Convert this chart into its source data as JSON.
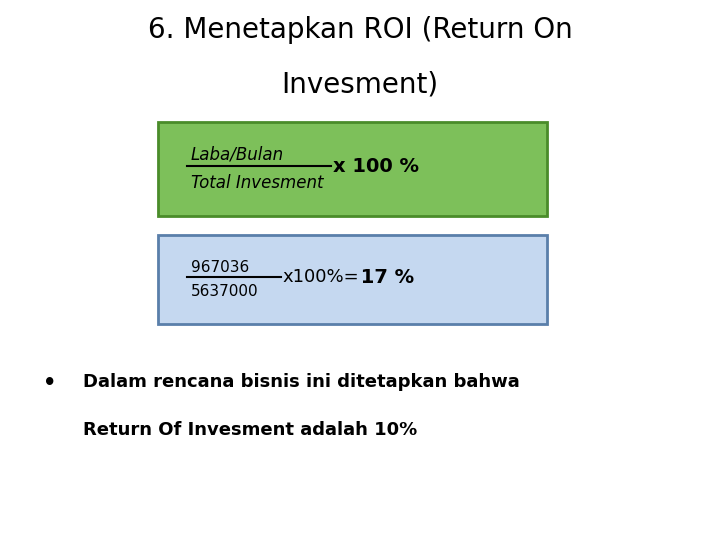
{
  "title_line1": "6. Menetapkan ROI (Return On",
  "title_line2": "Invesment)",
  "title_fontsize": 20,
  "title_color": "#000000",
  "green_box_color": "#7DC05A",
  "green_box_border": "#4A8C2A",
  "blue_box_color": "#C5D8F0",
  "blue_box_border": "#5A7FAA",
  "formula_numerator": "Laba/Bulan",
  "formula_denominator": "Total Invesment",
  "formula_suffix": "x 100 %",
  "calc_numerator": "967036",
  "calc_denominator": "5637000",
  "calc_suffix": "x100%=",
  "calc_result": " 17 %",
  "bullet_line1": "Dalam rencana bisnis ini ditetapkan bahwa",
  "bullet_line2": "Return Of Invesment adalah 10%",
  "bullet_fontsize": 13,
  "background_color": "#ffffff"
}
